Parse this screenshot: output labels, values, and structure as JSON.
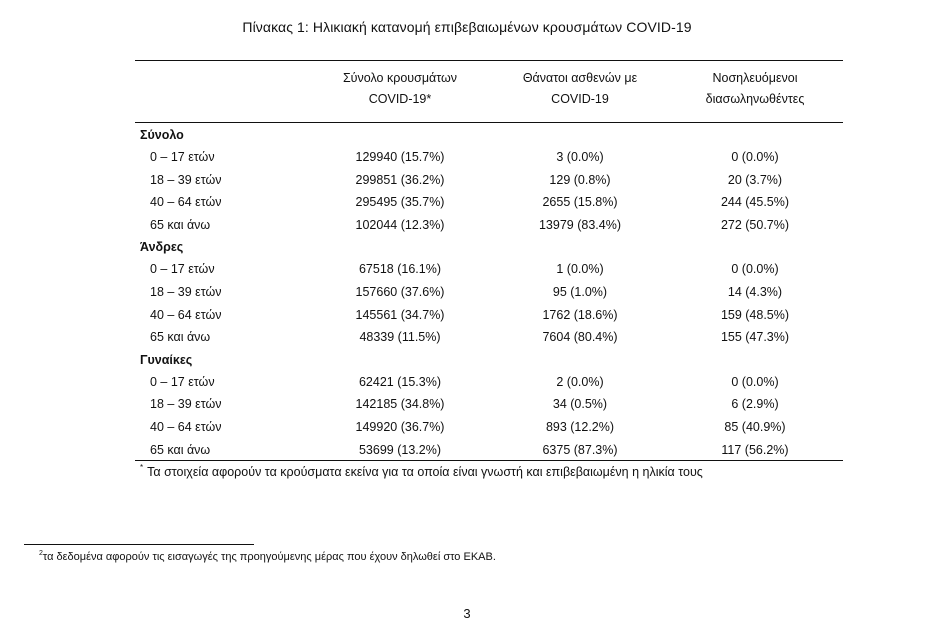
{
  "title": "Πίνακας 1: Ηλικιακή κατανομή επιβεβαιωμένων κρουσμάτων COVID-19",
  "columns": [
    {
      "line1": "Σύνολο κρουσμάτων",
      "line2": "COVID-19*"
    },
    {
      "line1": "Θάνατοι ασθενών με",
      "line2": "COVID-19"
    },
    {
      "line1": "Νοσηλευόμενοι",
      "line2": "διασωληνωθέντες"
    }
  ],
  "groups": [
    {
      "name": "Σύνολο",
      "rows": [
        {
          "label": "0 – 17 ετών",
          "c1": "129940 (15.7%)",
          "c2": "3 (0.0%)",
          "c3": "0 (0.0%)"
        },
        {
          "label": "18 – 39 ετών",
          "c1": "299851 (36.2%)",
          "c2": "129 (0.8%)",
          "c3": "20 (3.7%)"
        },
        {
          "label": "40 – 64 ετών",
          "c1": "295495 (35.7%)",
          "c2": "2655 (15.8%)",
          "c3": "244 (45.5%)"
        },
        {
          "label": "65 και άνω",
          "c1": "102044 (12.3%)",
          "c2": "13979 (83.4%)",
          "c3": "272 (50.7%)"
        }
      ]
    },
    {
      "name": "Άνδρες",
      "rows": [
        {
          "label": "0 – 17 ετών",
          "c1": "67518 (16.1%)",
          "c2": "1 (0.0%)",
          "c3": "0 (0.0%)"
        },
        {
          "label": "18 – 39 ετών",
          "c1": "157660 (37.6%)",
          "c2": "95 (1.0%)",
          "c3": "14 (4.3%)"
        },
        {
          "label": "40 – 64 ετών",
          "c1": "145561 (34.7%)",
          "c2": "1762 (18.6%)",
          "c3": "159 (48.5%)"
        },
        {
          "label": "65 και άνω",
          "c1": "48339 (11.5%)",
          "c2": "7604 (80.4%)",
          "c3": "155 (47.3%)"
        }
      ]
    },
    {
      "name": "Γυναίκες",
      "rows": [
        {
          "label": "0 – 17 ετών",
          "c1": "62421 (15.3%)",
          "c2": "2 (0.0%)",
          "c3": "0 (0.0%)"
        },
        {
          "label": "18 – 39 ετών",
          "c1": "142185 (34.8%)",
          "c2": "34 (0.5%)",
          "c3": "6 (2.9%)"
        },
        {
          "label": "40 – 64 ετών",
          "c1": "149920 (36.7%)",
          "c2": "893 (12.2%)",
          "c3": "85 (40.9%)"
        },
        {
          "label": "65 και άνω",
          "c1": "53699 (13.2%)",
          "c2": "6375 (87.3%)",
          "c3": "117 (56.2%)"
        }
      ]
    }
  ],
  "note": {
    "marker": "*",
    "text": "Τα στοιχεία αφορούν τα κρούσματα εκείνα για τα οποία είναι γνωστή και επιβεβαιωμένη η ηλικία τους"
  },
  "footnote": {
    "marker": "2",
    "text": "τα δεδομένα αφορούν τις εισαγωγές της προηγούμενης μέρας που έχουν δηλωθεί στο ΕΚΑΒ."
  },
  "page_number": "3"
}
